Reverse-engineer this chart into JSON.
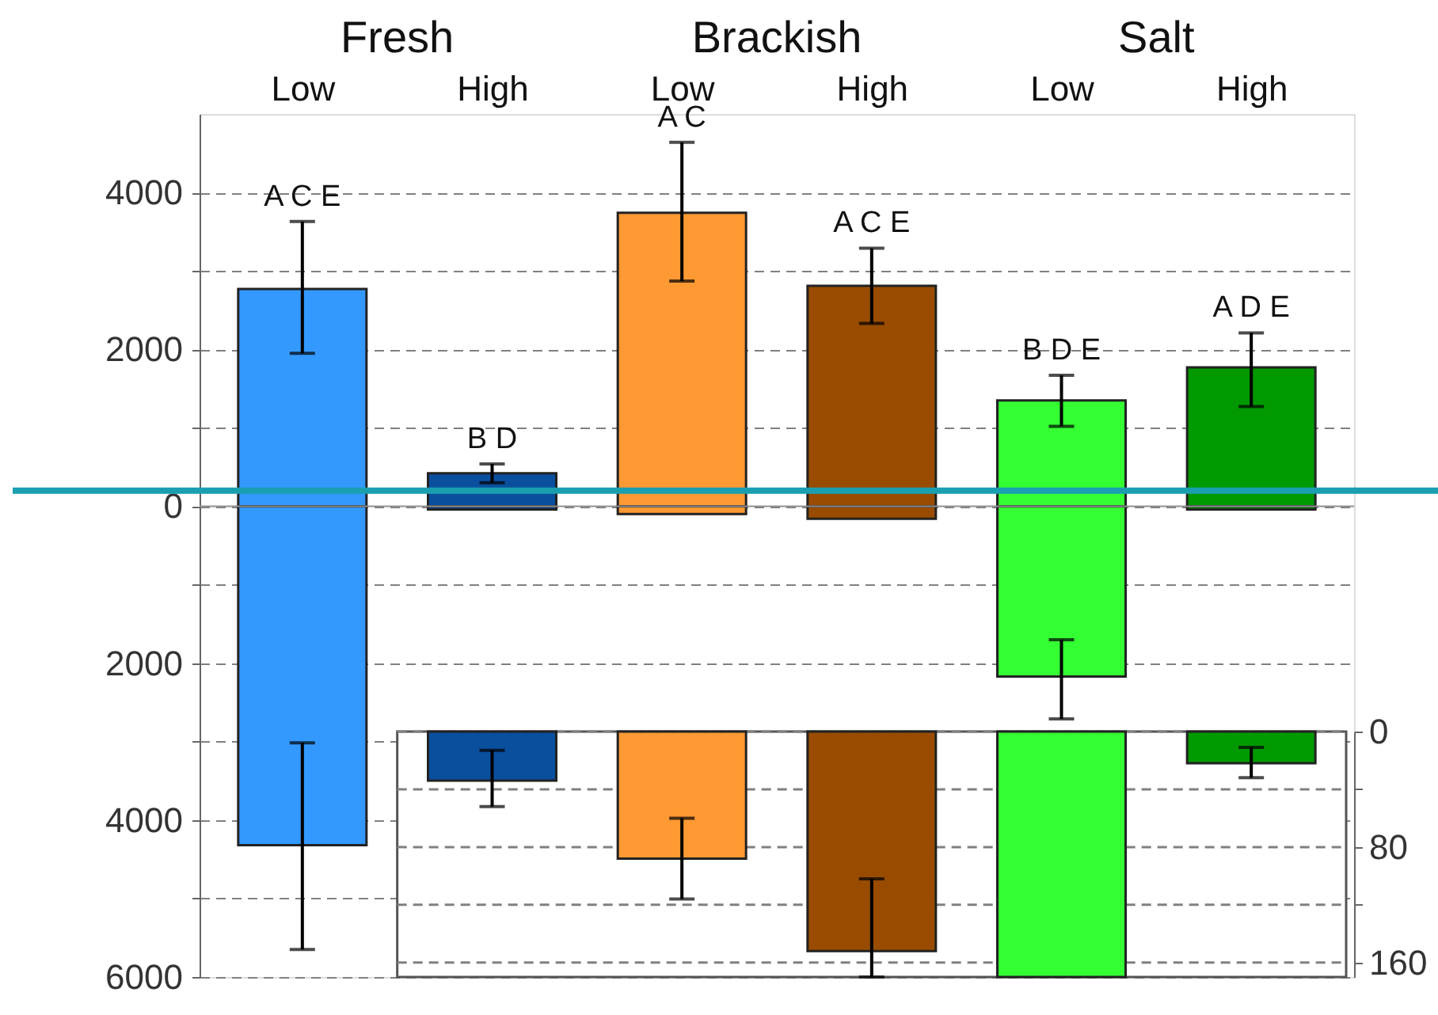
{
  "chart_data": [
    {
      "type": "bar",
      "stacked": true,
      "categories": [
        "Low",
        "High",
        "Low",
        "High",
        "Low",
        "High"
      ],
      "series": [
        {
          "colors": [
            "#3399ff",
            "#0a4f9e",
            "#ff9933",
            "#994c00",
            "#33ff33",
            "#009900"
          ],
          "values": [
            2770,
            420,
            3740,
            2810,
            1350,
            1770
          ],
          "errors": [
            [
              1950,
              3630
            ],
            [
              300,
              540
            ],
            [
              2870,
              4640
            ],
            [
              2330,
              3290
            ],
            [
              1020,
              1670
            ],
            [
              1270,
              2210
            ]
          ]
        },
        {
          "colors": [
            "#3399ff",
            "#0a4f9e",
            "#ff9933",
            "#994c00",
            "#33ff33",
            "#009900"
          ],
          "values": [
            -4320,
            -40,
            -100,
            -160,
            -2170,
            -40
          ],
          "errors": [
            [
              -5650,
              -3015
            ],
            null,
            null,
            null,
            [
              -2710,
              -1700
            ],
            null
          ]
        }
      ],
      "ylim": [
        -6000,
        5000
      ],
      "yticks": [
        4000,
        {
          "value": 3000,
          "label": null
        },
        2000,
        {
          "value": 1000,
          "label": null
        },
        0,
        {
          "value": -1000,
          "label": null
        },
        {
          "value": -2000,
          "label": "2000"
        },
        {
          "value": -3000,
          "label": null
        },
        {
          "value": -4000,
          "label": "4000"
        },
        {
          "value": -5000,
          "label": null
        },
        {
          "value": -6000,
          "label": "6000"
        }
      ],
      "grid": "y",
      "ref_lines": [
        {
          "axis": "y",
          "value": 0,
          "color": "#909090"
        },
        {
          "axis": "y",
          "value": 200,
          "color": "#1a9fb0"
        }
      ],
      "annotations": [
        "Fresh",
        "Brackish",
        "Salt",
        "A C E",
        "B D",
        "A C",
        "A C E",
        "B D E",
        "A D E"
      ]
    },
    {
      "type": "bar",
      "categories": [
        null,
        null,
        null,
        null,
        null
      ],
      "colors": [
        "#0a4f9e",
        "#ff9933",
        "#994c00",
        "#33ff33",
        "#009900"
      ],
      "values": [
        34,
        88,
        152,
        170,
        22
      ],
      "errors": [
        [
          13,
          52
        ],
        [
          60,
          116
        ],
        [
          102,
          170
        ],
        null,
        [
          11,
          32
        ]
      ],
      "ylim": [
        170,
        0
      ],
      "yticks": [
        0,
        {
          "value": 40,
          "label": null
        },
        80,
        {
          "value": 120,
          "label": null
        },
        160
      ],
      "grid": true
    }
  ]
}
